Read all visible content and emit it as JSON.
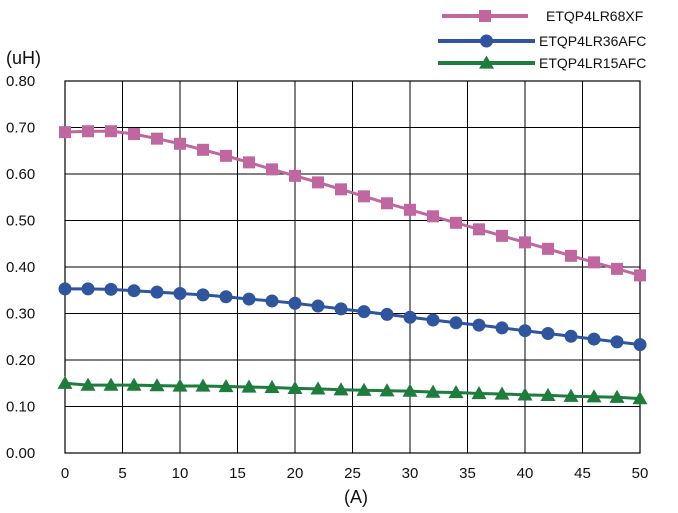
{
  "chart_data": {
    "type": "line",
    "title": "",
    "xlabel": "(A)",
    "ylabel": "(uH)",
    "xlim": [
      0,
      50
    ],
    "ylim": [
      0,
      0.8
    ],
    "grid": true,
    "legend_position": "top-right",
    "x_ticks": [
      "0",
      "5",
      "10",
      "15",
      "20",
      "25",
      "30",
      "35",
      "40",
      "45",
      "50"
    ],
    "y_ticks": [
      "0.00",
      "0.10",
      "0.20",
      "0.30",
      "0.40",
      "0.50",
      "0.60",
      "0.70",
      "0.80"
    ],
    "x": [
      0,
      2,
      4,
      6,
      8,
      10,
      12,
      14,
      16,
      18,
      20,
      22,
      24,
      26,
      28,
      30,
      32,
      34,
      36,
      38,
      40,
      42,
      44,
      46,
      48,
      50
    ],
    "series": [
      {
        "name": "ETQP4LR68XF",
        "color": "#c0679f",
        "marker": "square",
        "values": [
          0.69,
          0.692,
          0.692,
          0.686,
          0.676,
          0.665,
          0.652,
          0.639,
          0.625,
          0.61,
          0.596,
          0.582,
          0.567,
          0.552,
          0.537,
          0.523,
          0.509,
          0.495,
          0.481,
          0.467,
          0.453,
          0.439,
          0.424,
          0.41,
          0.396,
          0.382
        ]
      },
      {
        "name": "ETQP4LR36AFC",
        "color": "#2e559d",
        "marker": "circle",
        "values": [
          0.353,
          0.353,
          0.352,
          0.349,
          0.346,
          0.343,
          0.34,
          0.336,
          0.331,
          0.327,
          0.322,
          0.316,
          0.31,
          0.304,
          0.298,
          0.292,
          0.286,
          0.28,
          0.275,
          0.269,
          0.263,
          0.257,
          0.251,
          0.245,
          0.239,
          0.233
        ]
      },
      {
        "name": "ETQP4LR15AFC",
        "color": "#1e7c3c",
        "marker": "triangle",
        "values": [
          0.15,
          0.146,
          0.146,
          0.146,
          0.145,
          0.144,
          0.144,
          0.143,
          0.142,
          0.141,
          0.139,
          0.138,
          0.136,
          0.135,
          0.134,
          0.133,
          0.131,
          0.13,
          0.128,
          0.127,
          0.125,
          0.124,
          0.122,
          0.121,
          0.12,
          0.117
        ]
      }
    ]
  }
}
